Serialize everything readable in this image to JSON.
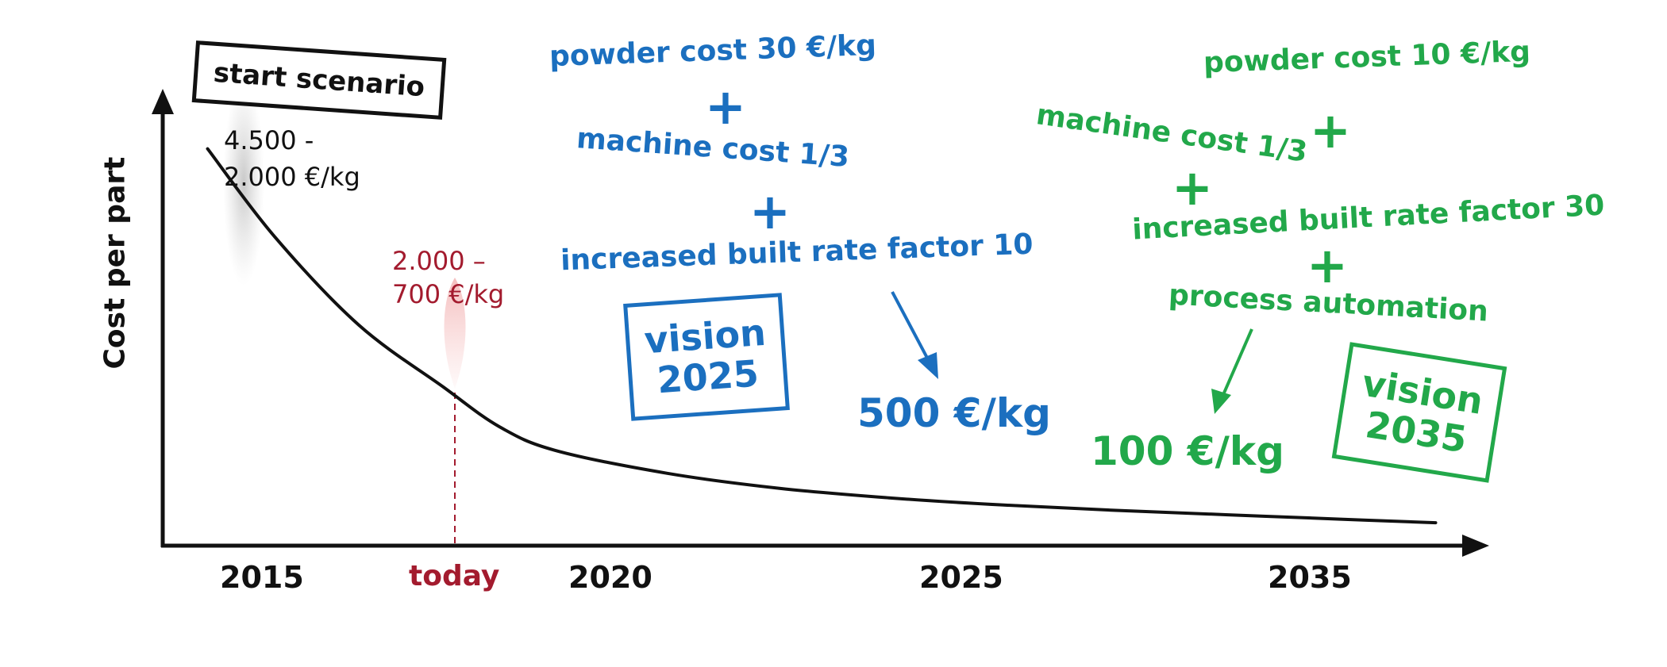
{
  "chart_data": {
    "type": "line",
    "title": "",
    "ylabel": "Cost per part",
    "xlabel": "",
    "x_ticks": [
      "2015",
      "today",
      "2020",
      "2025",
      "2035"
    ],
    "series": [
      {
        "x": [
          2013.8,
          2015,
          2016.5,
          2018,
          2019,
          2020,
          2022,
          2024,
          2026,
          2028,
          2030,
          2032,
          2034,
          2035.7
        ],
        "values": [
          4500,
          3500,
          2500,
          1800,
          1350,
          1080,
          820,
          650,
          540,
          460,
          400,
          350,
          300,
          260
        ]
      }
    ],
    "grid": false,
    "annotations": {
      "start_box": "start scenario",
      "start_range": [
        "4.500 -",
        "2.000 €/kg"
      ],
      "today_range": [
        "2.000 –",
        "700 €/kg"
      ],
      "vision2025_items": [
        "powder cost 30 €/kg",
        "machine cost 1/3",
        "increased built rate factor 10"
      ],
      "vision2025_box": [
        "vision",
        "2025"
      ],
      "vision2025_result": "500 €/kg",
      "vision2035_items": [
        "powder cost 10 €/kg",
        "machine cost 1/3",
        "increased built rate factor 30",
        "process automation"
      ],
      "vision2035_box": [
        "vision",
        "2035"
      ],
      "vision2035_result": "100 €/kg",
      "plus": "+"
    },
    "colors": {
      "axis": "#111111",
      "curve": "#111111",
      "vision2025": "#1b6fbf",
      "vision2035": "#22a84a",
      "today": "#a31b2e"
    }
  }
}
